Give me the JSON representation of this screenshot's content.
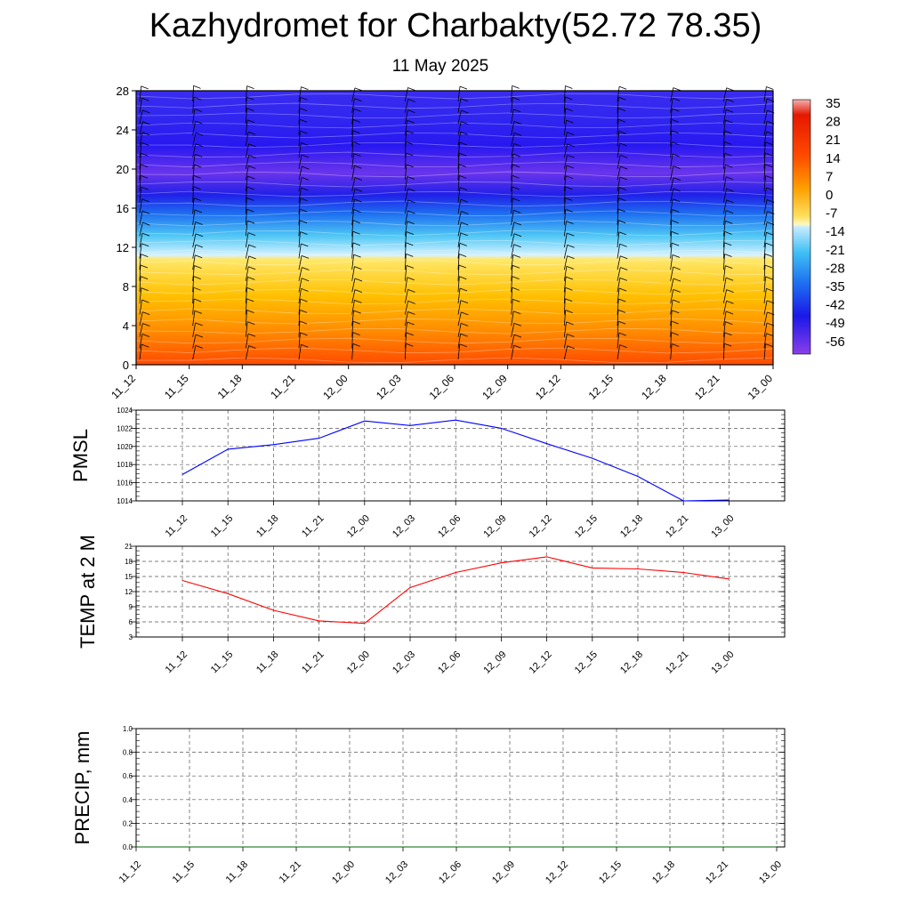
{
  "title": "Kazhydromet for Charbakty(52.72 78.35)",
  "subtitle": "11 May 2025",
  "time_labels": [
    "11_12",
    "11_15",
    "11_18",
    "11_21",
    "12_00",
    "12_03",
    "12_06",
    "12_09",
    "12_12",
    "12_15",
    "12_18",
    "12_21",
    "13_00"
  ],
  "chart_data": [
    {
      "type": "heatmap",
      "name": "temperature-cross-section",
      "x": [
        "11_12",
        "11_15",
        "11_18",
        "11_21",
        "12_00",
        "12_03",
        "12_06",
        "12_09",
        "12_12",
        "12_15",
        "12_18",
        "12_21",
        "13_00"
      ],
      "ylim": [
        0,
        28
      ],
      "yticks": [
        0,
        4,
        8,
        12,
        16,
        20,
        24,
        28
      ],
      "colorbar_labels": [
        "35",
        "28",
        "21",
        "14",
        "7",
        "0",
        "-7",
        "-14",
        "-21",
        "-28",
        "-35",
        "-42",
        "-49",
        "-56"
      ],
      "colors": [
        "#7a2ee8",
        "#2a1cf0",
        "#1e6af0",
        "#35b6f0",
        "#bfe8ff",
        "#ffe066",
        "#ffb000",
        "#ff6a00",
        "#e81a00",
        "#f5a0a0"
      ]
    },
    {
      "type": "line",
      "ylabel": "PMSL",
      "x": [
        "11_12",
        "11_15",
        "11_18",
        "11_21",
        "12_00",
        "12_03",
        "12_06",
        "12_09",
        "12_12",
        "12_15",
        "12_18",
        "12_21",
        "13_00"
      ],
      "values": [
        1016.9,
        1019.7,
        1020.2,
        1020.9,
        1022.8,
        1022.3,
        1022.9,
        1022.0,
        1020.3,
        1018.7,
        1016.7,
        1014.0,
        1014.1
      ],
      "ylim": [
        1014,
        1024
      ],
      "yticks": [
        1014,
        1016,
        1018,
        1020,
        1022,
        1024
      ],
      "color": "#0000ff",
      "grid": true
    },
    {
      "type": "line",
      "ylabel": "TEMP at 2 M",
      "x": [
        "11_12",
        "11_15",
        "11_18",
        "11_21",
        "12_00",
        "12_03",
        "12_06",
        "12_09",
        "12_12",
        "12_15",
        "12_18",
        "12_21",
        "13_00"
      ],
      "values": [
        14.2,
        11.6,
        8.3,
        6.2,
        5.7,
        12.8,
        15.8,
        17.7,
        18.9,
        16.7,
        16.5,
        15.8,
        14.5
      ],
      "ylim": [
        3,
        21
      ],
      "yticks": [
        3,
        6,
        9,
        12,
        15,
        18,
        21
      ],
      "color": "#ff0000",
      "grid": true
    },
    {
      "type": "line",
      "ylabel": "PRECIP, mm",
      "x": [
        "11_12",
        "11_15",
        "11_18",
        "11_21",
        "12_00",
        "12_03",
        "12_06",
        "12_09",
        "12_12",
        "12_15",
        "12_18",
        "12_21",
        "13_00"
      ],
      "values": [
        0,
        0,
        0,
        0,
        0,
        0,
        0,
        0,
        0,
        0,
        0,
        0,
        0
      ],
      "ylim": [
        0,
        1
      ],
      "yticks": [
        "0.0",
        "0.2",
        "0.4",
        "0.6",
        "0.8",
        "1.0"
      ],
      "color": "#006400",
      "grid": true
    }
  ]
}
